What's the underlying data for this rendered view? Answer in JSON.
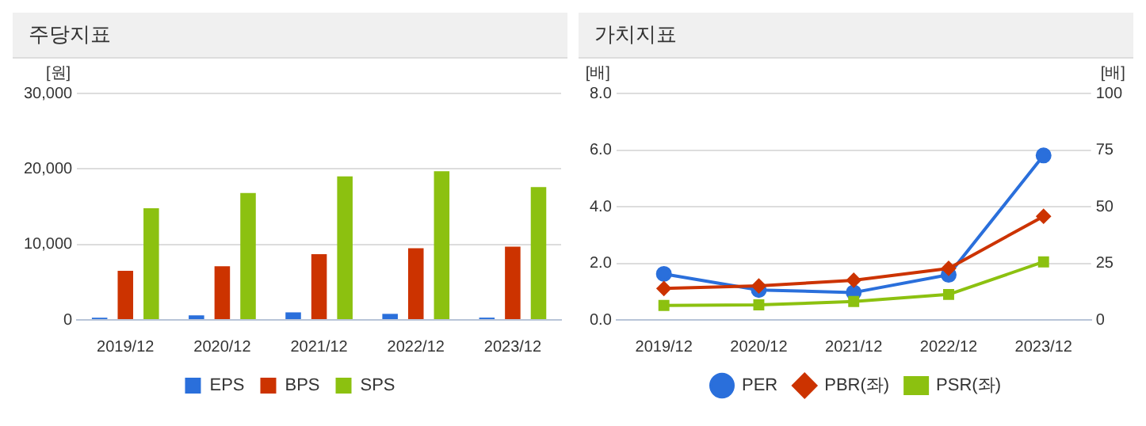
{
  "chart_data": [
    {
      "type": "bar",
      "title": "주당지표",
      "ylabel": "[원]",
      "categories": [
        "2019/12",
        "2020/12",
        "2021/12",
        "2022/12",
        "2023/12"
      ],
      "series": [
        {
          "name": "EPS",
          "color": "#2a6fdb",
          "values": [
            300,
            600,
            1000,
            800,
            300
          ]
        },
        {
          "name": "BPS",
          "color": "#cc3300",
          "values": [
            6500,
            7100,
            8700,
            9500,
            9700
          ]
        },
        {
          "name": "SPS",
          "color": "#8cc110",
          "values": [
            14800,
            16800,
            19000,
            19700,
            17600
          ]
        }
      ],
      "ylim": [
        0,
        30000
      ],
      "yticks": [
        {
          "value": 0,
          "label": "0"
        },
        {
          "value": 10000,
          "label": "10,000"
        },
        {
          "value": 20000,
          "label": "20,000"
        },
        {
          "value": 30000,
          "label": "30,000"
        }
      ],
      "grid": "y",
      "legend": "bottom"
    },
    {
      "type": "line",
      "title": "가치지표",
      "ylabel": "[배]",
      "y2label": "[배]",
      "categories": [
        "2019/12",
        "2020/12",
        "2021/12",
        "2022/12",
        "2023/12"
      ],
      "series": [
        {
          "name": "PER",
          "color": "#2a6fdb",
          "axis": "y2",
          "marker": "circle",
          "values": [
            20.3,
            13.2,
            12.1,
            19.9,
            72.6
          ]
        },
        {
          "name": "PBR(좌)",
          "color": "#cc3300",
          "marker": "diamond",
          "values": [
            1.11,
            1.2,
            1.4,
            1.82,
            3.66
          ]
        },
        {
          "name": "PSR(좌)",
          "color": "#8cc110",
          "marker": "square",
          "values": [
            0.51,
            0.53,
            0.65,
            0.9,
            2.05
          ]
        }
      ],
      "ylim": [
        0,
        8
      ],
      "yticks": [
        {
          "value": 0,
          "label": "0.0"
        },
        {
          "value": 2,
          "label": "2.0"
        },
        {
          "value": 4,
          "label": "4.0"
        },
        {
          "value": 6,
          "label": "6.0"
        },
        {
          "value": 8,
          "label": "8.0"
        }
      ],
      "y2lim": [
        0,
        100
      ],
      "y2ticks": [
        0,
        25,
        50,
        75,
        100
      ],
      "grid": "y",
      "legend": "bottom"
    }
  ]
}
